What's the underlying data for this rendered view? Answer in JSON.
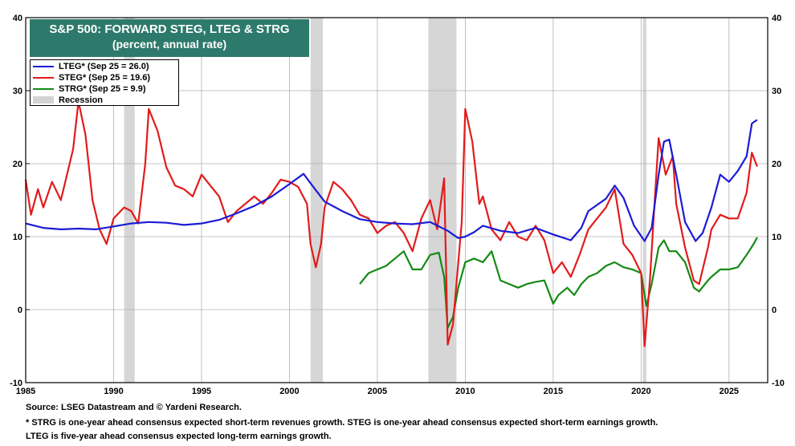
{
  "chart_data": {
    "type": "line",
    "title": "S&P 500: FORWARD STEG, LTEG & STRG",
    "subtitle": "(percent, annual rate)",
    "xlim": [
      1985,
      2027.2
    ],
    "ylim": [
      -10,
      40
    ],
    "x_ticks": [
      "1985",
      "1990",
      "1995",
      "2000",
      "2005",
      "2010",
      "2015",
      "2020",
      "2025"
    ],
    "y_ticks": [
      "-10",
      "0",
      "10",
      "20",
      "30",
      "40"
    ],
    "recessions": [
      [
        1990.6,
        1991.2
      ],
      [
        2001.2,
        2001.9
      ],
      [
        2007.9,
        2009.5
      ],
      [
        2020.1,
        2020.3
      ]
    ],
    "legend_recession": "Recession",
    "series": [
      {
        "name": "LTEG* (Sep 25 = 26.0)",
        "color": "#1b1bd6",
        "points": [
          [
            1985,
            11.8
          ],
          [
            1986,
            11.2
          ],
          [
            1987,
            11.0
          ],
          [
            1988,
            11.1
          ],
          [
            1989,
            11.0
          ],
          [
            1990,
            11.4
          ],
          [
            1991,
            11.8
          ],
          [
            1992,
            12.0
          ],
          [
            1993,
            11.9
          ],
          [
            1994,
            11.6
          ],
          [
            1995,
            11.8
          ],
          [
            1996,
            12.3
          ],
          [
            1997,
            13.2
          ],
          [
            1998,
            14.2
          ],
          [
            1999,
            15.5
          ],
          [
            2000,
            17.2
          ],
          [
            2000.8,
            18.6
          ],
          [
            2001.3,
            17.0
          ],
          [
            2002,
            14.8
          ],
          [
            2003,
            13.5
          ],
          [
            2004,
            12.4
          ],
          [
            2005,
            12.0
          ],
          [
            2006,
            11.8
          ],
          [
            2007,
            11.7
          ],
          [
            2008,
            12.0
          ],
          [
            2009,
            10.8
          ],
          [
            2009.6,
            9.8
          ],
          [
            2010,
            10.0
          ],
          [
            2010.5,
            10.6
          ],
          [
            2011,
            11.5
          ],
          [
            2012,
            10.8
          ],
          [
            2013,
            10.5
          ],
          [
            2014,
            11.2
          ],
          [
            2015,
            10.3
          ],
          [
            2016,
            9.5
          ],
          [
            2016.6,
            11.2
          ],
          [
            2017,
            13.5
          ],
          [
            2018,
            15.2
          ],
          [
            2018.5,
            17.0
          ],
          [
            2019,
            15.3
          ],
          [
            2019.6,
            11.5
          ],
          [
            2020.2,
            9.4
          ],
          [
            2020.6,
            11.2
          ],
          [
            2021,
            18.5
          ],
          [
            2021.3,
            23.0
          ],
          [
            2021.6,
            23.3
          ],
          [
            2022,
            18.5
          ],
          [
            2022.5,
            12.0
          ],
          [
            2023.1,
            9.4
          ],
          [
            2023.5,
            10.5
          ],
          [
            2024,
            14.0
          ],
          [
            2024.5,
            18.5
          ],
          [
            2025,
            17.5
          ],
          [
            2025.5,
            19.0
          ],
          [
            2026,
            21.0
          ],
          [
            2026.3,
            25.5
          ],
          [
            2026.6,
            26.0
          ]
        ]
      },
      {
        "name": "STEG* (Sep 25 = 19.6)",
        "color": "#e21b1b",
        "points": [
          [
            1985,
            17.8
          ],
          [
            1985.3,
            13.0
          ],
          [
            1985.7,
            16.5
          ],
          [
            1986,
            14.0
          ],
          [
            1986.5,
            17.5
          ],
          [
            1987,
            15.0
          ],
          [
            1987.7,
            22.0
          ],
          [
            1988,
            28.5
          ],
          [
            1988.4,
            24.0
          ],
          [
            1988.8,
            15.0
          ],
          [
            1989.2,
            11.0
          ],
          [
            1989.6,
            9.0
          ],
          [
            1990,
            12.5
          ],
          [
            1990.6,
            14.0
          ],
          [
            1991,
            13.5
          ],
          [
            1991.4,
            11.8
          ],
          [
            1991.8,
            20.0
          ],
          [
            1992,
            27.5
          ],
          [
            1992.5,
            24.5
          ],
          [
            1993,
            19.5
          ],
          [
            1993.5,
            17.0
          ],
          [
            1994,
            16.5
          ],
          [
            1994.5,
            15.5
          ],
          [
            1995,
            18.5
          ],
          [
            1995.5,
            17.0
          ],
          [
            1996,
            15.5
          ],
          [
            1996.5,
            12.0
          ],
          [
            1997,
            13.5
          ],
          [
            1998,
            15.5
          ],
          [
            1998.5,
            14.5
          ],
          [
            1999,
            16.0
          ],
          [
            1999.5,
            17.8
          ],
          [
            2000,
            17.5
          ],
          [
            2000.5,
            16.8
          ],
          [
            2001,
            14.5
          ],
          [
            2001.2,
            9.0
          ],
          [
            2001.5,
            5.8
          ],
          [
            2001.8,
            9.0
          ],
          [
            2002,
            14.0
          ],
          [
            2002.5,
            17.5
          ],
          [
            2003,
            16.5
          ],
          [
            2003.5,
            15.0
          ],
          [
            2004,
            13.0
          ],
          [
            2004.5,
            12.5
          ],
          [
            2005,
            10.5
          ],
          [
            2005.5,
            11.5
          ],
          [
            2006,
            12.0
          ],
          [
            2006.5,
            10.5
          ],
          [
            2007,
            8.0
          ],
          [
            2007.5,
            12.5
          ],
          [
            2008,
            15.0
          ],
          [
            2008.4,
            11.0
          ],
          [
            2008.8,
            18.0
          ],
          [
            2009,
            -4.8
          ],
          [
            2009.3,
            -2.0
          ],
          [
            2009.8,
            12.0
          ],
          [
            2010,
            27.5
          ],
          [
            2010.4,
            23.0
          ],
          [
            2010.8,
            14.5
          ],
          [
            2011,
            15.5
          ],
          [
            2011.5,
            11.0
          ],
          [
            2012,
            9.5
          ],
          [
            2012.5,
            12.0
          ],
          [
            2013,
            10.0
          ],
          [
            2013.5,
            9.5
          ],
          [
            2014,
            11.5
          ],
          [
            2014.5,
            9.5
          ],
          [
            2015,
            5.0
          ],
          [
            2015.5,
            6.5
          ],
          [
            2016,
            4.5
          ],
          [
            2016.5,
            7.5
          ],
          [
            2017,
            11.0
          ],
          [
            2017.5,
            12.5
          ],
          [
            2018,
            14.0
          ],
          [
            2018.5,
            16.5
          ],
          [
            2019,
            9.0
          ],
          [
            2019.5,
            7.5
          ],
          [
            2020,
            5.0
          ],
          [
            2020.2,
            -5.0
          ],
          [
            2020.5,
            4.0
          ],
          [
            2020.8,
            16.0
          ],
          [
            2021,
            23.5
          ],
          [
            2021.4,
            18.5
          ],
          [
            2021.8,
            21.0
          ],
          [
            2022,
            14.5
          ],
          [
            2022.5,
            8.5
          ],
          [
            2023,
            4.0
          ],
          [
            2023.3,
            3.5
          ],
          [
            2023.8,
            8.5
          ],
          [
            2024,
            11.0
          ],
          [
            2024.5,
            13.0
          ],
          [
            2025,
            12.5
          ],
          [
            2025.5,
            12.5
          ],
          [
            2026,
            16.0
          ],
          [
            2026.3,
            21.5
          ],
          [
            2026.6,
            19.6
          ]
        ]
      },
      {
        "name": "STRG* (Sep 25 = 9.9)",
        "color": "#148a14",
        "points": [
          [
            2004,
            3.5
          ],
          [
            2004.5,
            5.0
          ],
          [
            2005,
            5.5
          ],
          [
            2005.5,
            6.0
          ],
          [
            2006,
            7.0
          ],
          [
            2006.5,
            8.0
          ],
          [
            2007,
            5.5
          ],
          [
            2007.5,
            5.5
          ],
          [
            2008,
            7.5
          ],
          [
            2008.5,
            7.8
          ],
          [
            2008.8,
            4.5
          ],
          [
            2009,
            -2.5
          ],
          [
            2009.3,
            -1.0
          ],
          [
            2009.6,
            3.0
          ],
          [
            2010,
            6.5
          ],
          [
            2010.5,
            7.0
          ],
          [
            2011,
            6.5
          ],
          [
            2011.5,
            8.0
          ],
          [
            2012,
            4.0
          ],
          [
            2012.5,
            3.5
          ],
          [
            2013,
            3.0
          ],
          [
            2013.5,
            3.5
          ],
          [
            2014,
            3.8
          ],
          [
            2014.5,
            4.0
          ],
          [
            2015,
            0.8
          ],
          [
            2015.3,
            2.0
          ],
          [
            2015.8,
            3.0
          ],
          [
            2016.2,
            2.0
          ],
          [
            2016.6,
            3.5
          ],
          [
            2017,
            4.5
          ],
          [
            2017.5,
            5.0
          ],
          [
            2018,
            6.0
          ],
          [
            2018.5,
            6.5
          ],
          [
            2019,
            5.8
          ],
          [
            2019.5,
            5.5
          ],
          [
            2020,
            5.0
          ],
          [
            2020.3,
            0.5
          ],
          [
            2020.6,
            3.5
          ],
          [
            2021,
            8.5
          ],
          [
            2021.3,
            9.5
          ],
          [
            2021.6,
            8.0
          ],
          [
            2022,
            8.0
          ],
          [
            2022.5,
            6.5
          ],
          [
            2023,
            3.0
          ],
          [
            2023.3,
            2.5
          ],
          [
            2023.8,
            4.0
          ],
          [
            2024,
            4.5
          ],
          [
            2024.5,
            5.5
          ],
          [
            2025,
            5.5
          ],
          [
            2025.5,
            5.8
          ],
          [
            2026,
            7.5
          ],
          [
            2026.4,
            9.0
          ],
          [
            2026.6,
            9.9
          ]
        ]
      }
    ]
  },
  "footer": {
    "source": "Source: LSEG Datastream and © Yardeni Research.",
    "note1": "* STRG is one-year ahead consensus expected short-term revenues growth. STEG is one-year ahead consensus expected short-term earnings growth.",
    "note2": "LTEG is five-year ahead consensus expected long-term earnings growth."
  }
}
